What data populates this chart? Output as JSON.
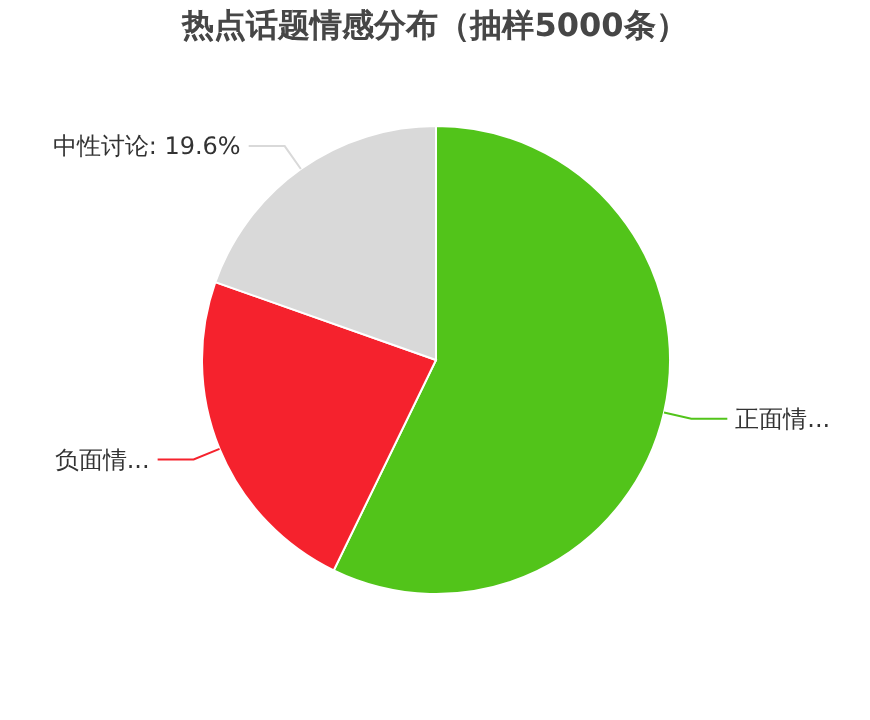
{
  "chart_data": {
    "type": "pie",
    "title": "热点话题情感分布（抽样5000条）",
    "categories": [
      "正面情...",
      "负面情...",
      "中性讨论"
    ],
    "values": [
      57.2,
      23.2,
      19.6
    ],
    "value_labels": [
      null,
      null,
      "19.6%"
    ],
    "colors": [
      "#52c41a",
      "#f5222d",
      "#d9d9d9"
    ]
  }
}
